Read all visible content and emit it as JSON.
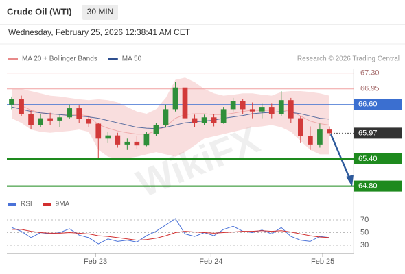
{
  "chart_data": [
    {
      "type": "candlestick",
      "title": "Crude Oil (WTI)",
      "timeframe": "30 MIN",
      "subtitle": "Wednesday, February 25, 2026 12:38:41 AM CET",
      "credit": "Research © 2026 Trading Central",
      "watermark": "WikiFX",
      "up_color": "#2f8f3a",
      "down_color": "#d23a3a",
      "xlim": [
        0,
        36
      ],
      "ylim": [
        64.6,
        67.4
      ],
      "x": [
        0.5,
        1.5,
        2.5,
        3.5,
        4.5,
        5.5,
        6.5,
        7.5,
        8.5,
        9.5,
        10.5,
        11.5,
        12.5,
        13.5,
        14.5,
        15.5,
        16.5,
        17.5,
        18.5,
        19.5,
        20.5,
        21.5,
        22.5,
        23.5,
        24.5,
        25.5,
        26.5,
        27.5,
        28.5,
        29.5,
        30.5,
        31.5,
        32.5,
        33.5
      ],
      "ohlc": [
        [
          66.6,
          66.78,
          66.5,
          66.72
        ],
        [
          66.72,
          66.8,
          66.35,
          66.4
        ],
        [
          66.4,
          66.48,
          66.05,
          66.15
        ],
        [
          66.15,
          66.4,
          66.1,
          66.3
        ],
        [
          66.3,
          66.42,
          66.15,
          66.25
        ],
        [
          66.25,
          66.38,
          66.1,
          66.32
        ],
        [
          66.32,
          66.6,
          66.28,
          66.52
        ],
        [
          66.52,
          66.58,
          66.2,
          66.28
        ],
        [
          66.28,
          66.35,
          66.1,
          66.18
        ],
        [
          66.18,
          66.2,
          65.42,
          65.85
        ],
        [
          65.85,
          66.0,
          65.75,
          65.92
        ],
        [
          65.92,
          65.98,
          65.65,
          65.72
        ],
        [
          65.72,
          65.85,
          65.6,
          65.78
        ],
        [
          65.78,
          65.9,
          65.62,
          65.7
        ],
        [
          65.7,
          66.0,
          65.68,
          65.95
        ],
        [
          65.95,
          66.2,
          65.9,
          66.15
        ],
        [
          66.15,
          66.6,
          66.1,
          66.5
        ],
        [
          66.5,
          67.1,
          66.45,
          66.98
        ],
        [
          66.98,
          67.05,
          66.2,
          66.3
        ],
        [
          66.3,
          66.38,
          66.1,
          66.2
        ],
        [
          66.2,
          66.38,
          66.15,
          66.32
        ],
        [
          66.32,
          66.4,
          66.12,
          66.2
        ],
        [
          66.2,
          66.55,
          66.18,
          66.5
        ],
        [
          66.5,
          66.75,
          66.45,
          66.68
        ],
        [
          66.68,
          66.72,
          66.4,
          66.5
        ],
        [
          66.5,
          66.65,
          66.3,
          66.45
        ],
        [
          66.45,
          66.62,
          66.3,
          66.55
        ],
        [
          66.55,
          66.62,
          66.3,
          66.4
        ],
        [
          66.4,
          66.9,
          66.35,
          66.7
        ],
        [
          66.7,
          66.75,
          66.2,
          66.3
        ],
        [
          66.3,
          66.35,
          65.75,
          65.9
        ],
        [
          65.9,
          66.12,
          65.6,
          65.72
        ],
        [
          65.72,
          66.18,
          65.65,
          66.05
        ],
        [
          66.05,
          66.12,
          65.9,
          65.97
        ]
      ],
      "series": [
        {
          "name": "MA 20 + Bollinger Bands",
          "color": "#e88a8a",
          "values": [
            66.62,
            66.58,
            66.48,
            66.42,
            66.39,
            66.39,
            66.38,
            66.38,
            66.35,
            66.16,
            66.08,
            66.02,
            65.98,
            65.95,
            65.95,
            66.02,
            66.12,
            66.3,
            66.38,
            66.4,
            66.4,
            66.38,
            66.38,
            66.41,
            66.45,
            66.48,
            66.47,
            66.48,
            66.49,
            66.45,
            66.35,
            66.24,
            66.18,
            66.15
          ],
          "upper": [
            66.95,
            66.95,
            66.9,
            66.85,
            66.8,
            66.78,
            66.75,
            66.72,
            66.7,
            66.72,
            66.7,
            66.65,
            66.55,
            66.45,
            66.4,
            66.5,
            66.75,
            67.15,
            67.2,
            67.1,
            66.95,
            66.85,
            66.8,
            66.82,
            66.85,
            66.85,
            66.82,
            66.8,
            66.88,
            66.9,
            66.9,
            66.88,
            66.85,
            66.8
          ],
          "lower": [
            66.3,
            66.2,
            66.05,
            66.0,
            65.98,
            66.0,
            66.02,
            66.05,
            66.0,
            65.6,
            65.45,
            65.4,
            65.42,
            65.45,
            65.5,
            65.55,
            65.5,
            65.45,
            65.55,
            65.7,
            65.85,
            65.9,
            65.95,
            66.0,
            66.05,
            66.1,
            66.12,
            66.15,
            66.1,
            66.0,
            65.8,
            65.6,
            65.5,
            65.5
          ]
        },
        {
          "name": "MA 50",
          "color": "#2e4f8f",
          "values": [
            66.55,
            66.5,
            66.45,
            66.42,
            66.4,
            66.38,
            66.36,
            66.35,
            66.33,
            66.3,
            66.25,
            66.2,
            66.15,
            66.1,
            66.08,
            66.07,
            66.1,
            66.15,
            66.2,
            66.22,
            66.24,
            66.26,
            66.3,
            66.33,
            66.36,
            66.4,
            66.42,
            66.43,
            66.45,
            66.43,
            66.4,
            66.35,
            66.3,
            66.28
          ]
        }
      ],
      "levels": [
        {
          "value": 67.3,
          "label": "67.30",
          "color": "#f0a0a0",
          "style": "plain"
        },
        {
          "value": 66.95,
          "label": "66.95",
          "color": "#f0a0a0",
          "style": "plain"
        },
        {
          "value": 66.6,
          "label": "66.60",
          "color": "#3b6fd0",
          "style": "box"
        },
        {
          "value": 65.97,
          "label": "65.97",
          "color": "#333333",
          "style": "current"
        },
        {
          "value": 65.4,
          "label": "65.40",
          "color": "#1e8a1e",
          "style": "box"
        },
        {
          "value": 64.8,
          "label": "64.80",
          "color": "#1e8a1e",
          "style": "box"
        }
      ]
    },
    {
      "type": "line",
      "xlim": [
        0,
        36
      ],
      "ylim": [
        20,
        80
      ],
      "yticks": [
        70,
        50,
        30
      ],
      "xticks": [
        {
          "value": 9.2,
          "label": "Feb 23"
        },
        {
          "value": 21.2,
          "label": "Feb 24"
        },
        {
          "value": 32.8,
          "label": "Feb 25"
        }
      ],
      "x": [
        0.5,
        1.5,
        2.5,
        3.5,
        4.5,
        5.5,
        6.5,
        7.5,
        8.5,
        9.5,
        10.5,
        11.5,
        12.5,
        13.5,
        14.5,
        15.5,
        16.5,
        17.5,
        18.5,
        19.5,
        20.5,
        21.5,
        22.5,
        23.5,
        24.5,
        25.5,
        26.5,
        27.5,
        28.5,
        29.5,
        30.5,
        31.5,
        32.5,
        33.5
      ],
      "series": [
        {
          "name": "RSI",
          "color": "#4a72d8",
          "values": [
            58,
            52,
            42,
            50,
            48,
            50,
            56,
            46,
            42,
            32,
            40,
            36,
            38,
            35,
            45,
            52,
            62,
            72,
            48,
            44,
            50,
            45,
            55,
            60,
            52,
            50,
            54,
            48,
            58,
            44,
            38,
            36,
            44,
            42
          ]
        },
        {
          "name": "9MA",
          "color": "#d22f2f",
          "values": [
            55,
            55,
            52,
            50,
            49,
            49,
            50,
            49,
            48,
            45,
            44,
            42,
            40,
            38,
            39,
            41,
            45,
            50,
            52,
            51,
            50,
            49,
            50,
            51,
            52,
            52,
            53,
            52,
            53,
            51,
            48,
            45,
            43,
            42
          ]
        }
      ]
    }
  ]
}
